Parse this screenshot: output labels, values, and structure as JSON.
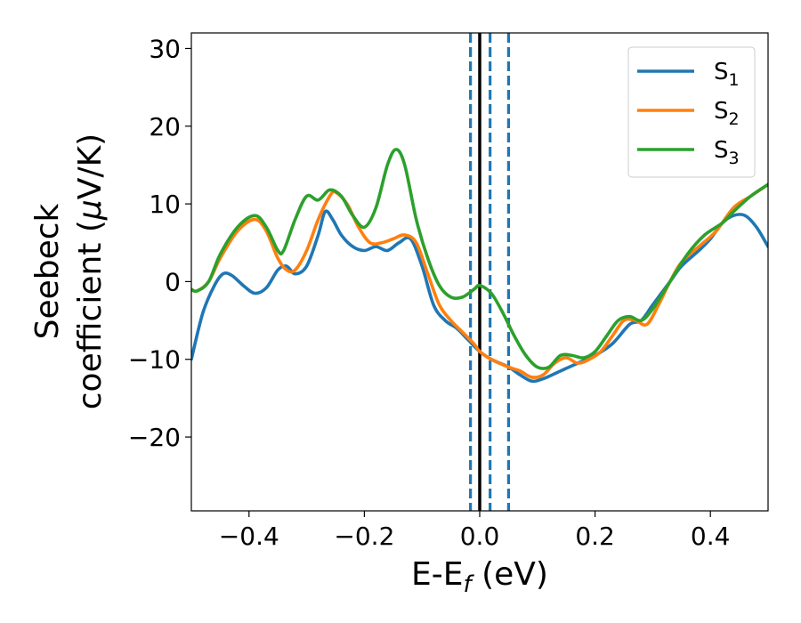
{
  "chart_data": {
    "type": "line",
    "title": "",
    "xlabel": "E-E",
    "xlabel_sub": "f",
    "xlabel_unit": " (eV)",
    "ylabel_line1": "Seebeck",
    "ylabel_line2": "coefficient  (",
    "ylabel_mu": "μ",
    "ylabel_unit": "V/K)",
    "xlim": [
      -0.5,
      0.5
    ],
    "ylim": [
      -29.5,
      32
    ],
    "xticks": [
      -0.4,
      -0.2,
      0.0,
      0.2,
      0.4
    ],
    "xtick_labels": [
      "−0.4",
      "−0.2",
      "0.0",
      "0.2",
      "0.4"
    ],
    "yticks": [
      -20,
      -10,
      0,
      10,
      20,
      30
    ],
    "ytick_labels": [
      "−20",
      "−10",
      "0",
      "10",
      "20",
      "30"
    ],
    "grid": false,
    "legend_position": "top-right",
    "vertical_lines": [
      {
        "x": 0.0,
        "style": "solid",
        "color": "#000000"
      },
      {
        "x": -0.016,
        "style": "dashed",
        "color": "#1f77b4"
      },
      {
        "x": 0.018,
        "style": "dashed",
        "color": "#1f77b4"
      },
      {
        "x": 0.05,
        "style": "dashed",
        "color": "#1f77b4"
      }
    ],
    "series": [
      {
        "name": "S",
        "sub": "1",
        "color": "#1f77b4",
        "points": [
          [
            -0.5,
            -10
          ],
          [
            -0.48,
            -4
          ],
          [
            -0.46,
            -0.5
          ],
          [
            -0.445,
            1
          ],
          [
            -0.43,
            0.8
          ],
          [
            -0.41,
            -0.5
          ],
          [
            -0.39,
            -1.5
          ],
          [
            -0.37,
            -0.8
          ],
          [
            -0.35,
            1.5
          ],
          [
            -0.335,
            2
          ],
          [
            -0.32,
            1
          ],
          [
            -0.3,
            2
          ],
          [
            -0.28,
            6
          ],
          [
            -0.268,
            9
          ],
          [
            -0.255,
            8
          ],
          [
            -0.24,
            6
          ],
          [
            -0.22,
            4.5
          ],
          [
            -0.2,
            4
          ],
          [
            -0.18,
            4.5
          ],
          [
            -0.16,
            4
          ],
          [
            -0.14,
            5
          ],
          [
            -0.12,
            5.5
          ],
          [
            -0.1,
            2
          ],
          [
            -0.08,
            -3
          ],
          [
            -0.06,
            -5
          ],
          [
            -0.04,
            -6
          ],
          [
            -0.02,
            -7.5
          ],
          [
            0.0,
            -9
          ],
          [
            0.02,
            -10
          ],
          [
            0.05,
            -11
          ],
          [
            0.07,
            -12
          ],
          [
            0.09,
            -12.8
          ],
          [
            0.11,
            -12.5
          ],
          [
            0.14,
            -11.5
          ],
          [
            0.17,
            -10.5
          ],
          [
            0.2,
            -9.5
          ],
          [
            0.23,
            -8
          ],
          [
            0.26,
            -5.5
          ],
          [
            0.28,
            -5
          ],
          [
            0.3,
            -3
          ],
          [
            0.33,
            0
          ],
          [
            0.35,
            2
          ],
          [
            0.38,
            4
          ],
          [
            0.4,
            5.5
          ],
          [
            0.42,
            7.5
          ],
          [
            0.44,
            8.5
          ],
          [
            0.46,
            8.5
          ],
          [
            0.48,
            7
          ],
          [
            0.5,
            4.5
          ]
        ]
      },
      {
        "name": "S",
        "sub": "2",
        "color": "#ff7f0e",
        "points": [
          [
            -0.5,
            -1
          ],
          [
            -0.49,
            -1.2
          ],
          [
            -0.47,
            0
          ],
          [
            -0.45,
            3
          ],
          [
            -0.42,
            6.5
          ],
          [
            -0.39,
            8
          ],
          [
            -0.37,
            6.5
          ],
          [
            -0.35,
            3
          ],
          [
            -0.335,
            1.5
          ],
          [
            -0.32,
            1.5
          ],
          [
            -0.3,
            4
          ],
          [
            -0.28,
            8
          ],
          [
            -0.26,
            11
          ],
          [
            -0.25,
            11.5
          ],
          [
            -0.23,
            10
          ],
          [
            -0.21,
            7
          ],
          [
            -0.19,
            5
          ],
          [
            -0.17,
            5
          ],
          [
            -0.15,
            5.5
          ],
          [
            -0.13,
            6
          ],
          [
            -0.11,
            5
          ],
          [
            -0.09,
            1
          ],
          [
            -0.07,
            -3
          ],
          [
            -0.05,
            -5
          ],
          [
            -0.03,
            -6.5
          ],
          [
            -0.01,
            -8
          ],
          [
            0.0,
            -9
          ],
          [
            0.02,
            -10
          ],
          [
            0.05,
            -11
          ],
          [
            0.07,
            -11.5
          ],
          [
            0.09,
            -12.3
          ],
          [
            0.11,
            -12
          ],
          [
            0.13,
            -10.5
          ],
          [
            0.15,
            -9.8
          ],
          [
            0.17,
            -10.5
          ],
          [
            0.19,
            -10
          ],
          [
            0.21,
            -9
          ],
          [
            0.23,
            -7
          ],
          [
            0.25,
            -5
          ],
          [
            0.27,
            -5
          ],
          [
            0.29,
            -5.5
          ],
          [
            0.31,
            -3
          ],
          [
            0.33,
            0
          ],
          [
            0.35,
            2.5
          ],
          [
            0.38,
            4.5
          ],
          [
            0.41,
            6.5
          ],
          [
            0.44,
            9.5
          ],
          [
            0.47,
            11
          ],
          [
            0.5,
            12.5
          ]
        ]
      },
      {
        "name": "S",
        "sub": "3",
        "color": "#2ca02c",
        "points": [
          [
            -0.5,
            -1
          ],
          [
            -0.49,
            -1.2
          ],
          [
            -0.47,
            0
          ],
          [
            -0.45,
            3.5
          ],
          [
            -0.42,
            7
          ],
          [
            -0.39,
            8.5
          ],
          [
            -0.37,
            7
          ],
          [
            -0.35,
            4
          ],
          [
            -0.34,
            4
          ],
          [
            -0.32,
            8
          ],
          [
            -0.3,
            11
          ],
          [
            -0.28,
            10.5
          ],
          [
            -0.26,
            11.8
          ],
          [
            -0.24,
            11
          ],
          [
            -0.22,
            8.5
          ],
          [
            -0.2,
            7
          ],
          [
            -0.18,
            9.5
          ],
          [
            -0.16,
            15
          ],
          [
            -0.145,
            17
          ],
          [
            -0.13,
            15
          ],
          [
            -0.11,
            8
          ],
          [
            -0.09,
            3
          ],
          [
            -0.07,
            -0.5
          ],
          [
            -0.05,
            -2
          ],
          [
            -0.03,
            -2
          ],
          [
            -0.01,
            -1
          ],
          [
            0.0,
            -0.5
          ],
          [
            0.02,
            -1.5
          ],
          [
            0.04,
            -4
          ],
          [
            0.06,
            -7
          ],
          [
            0.08,
            -9.5
          ],
          [
            0.1,
            -11
          ],
          [
            0.12,
            -11
          ],
          [
            0.14,
            -9.5
          ],
          [
            0.16,
            -9.5
          ],
          [
            0.18,
            -9.8
          ],
          [
            0.2,
            -9
          ],
          [
            0.22,
            -7
          ],
          [
            0.24,
            -5
          ],
          [
            0.26,
            -4.5
          ],
          [
            0.28,
            -5
          ],
          [
            0.3,
            -3.5
          ],
          [
            0.33,
            0
          ],
          [
            0.36,
            3.5
          ],
          [
            0.39,
            6
          ],
          [
            0.42,
            7.5
          ],
          [
            0.44,
            9
          ],
          [
            0.47,
            11
          ],
          [
            0.5,
            12.5
          ]
        ]
      }
    ]
  }
}
